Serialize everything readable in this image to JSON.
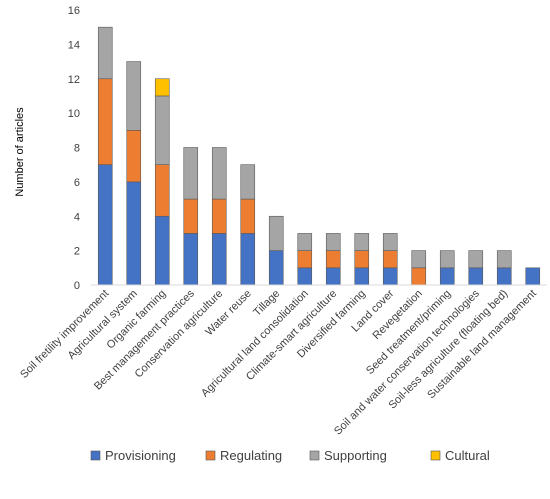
{
  "chart_data": {
    "type": "bar",
    "stacked": true,
    "ylabel": "Number of articles",
    "xlabel": "",
    "ylim": [
      0,
      16
    ],
    "yticks": [
      0,
      2,
      4,
      6,
      8,
      10,
      12,
      14,
      16
    ],
    "grid": false,
    "legend_position": "bottom",
    "categories": [
      "Soil fretility improvement",
      "Agricultural system",
      "Organic farming",
      "Best management practices",
      "Conservation agriculture",
      "Water reuse",
      "Tillage",
      "Agricultural land consolidation",
      "Climate-smart agriculture",
      "Diversified farming",
      "Land cover",
      "Revegetation",
      "Seed treatment/priming",
      "Soil and water conservation technologies",
      "Soil-less agriculture (floating bed)",
      "Sustainable land management"
    ],
    "series": [
      {
        "name": "Provisioning",
        "color": "#4472C4",
        "values": [
          7,
          6,
          4,
          3,
          3,
          3,
          2,
          1,
          1,
          1,
          1,
          0,
          1,
          1,
          1,
          1
        ]
      },
      {
        "name": "Regulating",
        "color": "#ED7D31",
        "values": [
          5,
          3,
          3,
          2,
          2,
          2,
          0,
          1,
          1,
          1,
          1,
          1,
          0,
          0,
          0,
          0
        ]
      },
      {
        "name": "Supporting",
        "color": "#A5A5A5",
        "values": [
          3,
          4,
          4,
          3,
          3,
          2,
          2,
          1,
          1,
          1,
          1,
          1,
          1,
          1,
          1,
          0
        ]
      },
      {
        "name": "Cultural",
        "color": "#FFC000",
        "values": [
          0,
          0,
          1,
          0,
          0,
          0,
          0,
          0,
          0,
          0,
          0,
          0,
          0,
          0,
          0,
          0
        ]
      }
    ]
  }
}
